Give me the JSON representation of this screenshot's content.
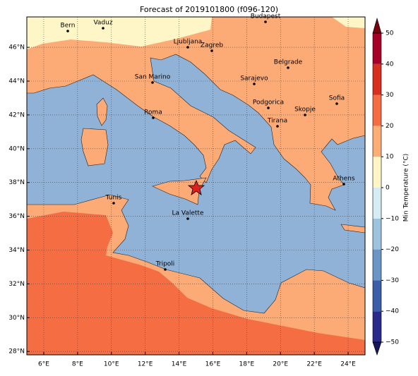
{
  "title": "Forecast of 2019101800 (f096-120)",
  "map": {
    "xlim": [
      5,
      25
    ],
    "ylim": [
      27.8,
      47.8
    ],
    "grid": true,
    "sea_color": "#90b2d6",
    "xticks": [
      {
        "value": 6,
        "label": "6°E"
      },
      {
        "value": 8,
        "label": "8°E"
      },
      {
        "value": 10,
        "label": "10°E"
      },
      {
        "value": 12,
        "label": "12°E"
      },
      {
        "value": 14,
        "label": "14°E"
      },
      {
        "value": 16,
        "label": "16°E"
      },
      {
        "value": 18,
        "label": "18°E"
      },
      {
        "value": 20,
        "label": "20°E"
      },
      {
        "value": 22,
        "label": "22°E"
      },
      {
        "value": 24,
        "label": "24°E"
      }
    ],
    "yticks": [
      {
        "value": 28,
        "label": "28°N"
      },
      {
        "value": 30,
        "label": "30°N"
      },
      {
        "value": 32,
        "label": "32°N"
      },
      {
        "value": 34,
        "label": "34°N"
      },
      {
        "value": 36,
        "label": "36°N"
      },
      {
        "value": 38,
        "label": "38°N"
      },
      {
        "value": 40,
        "label": "40°N"
      },
      {
        "value": 42,
        "label": "42°N"
      },
      {
        "value": 44,
        "label": "44°N"
      },
      {
        "value": 46,
        "label": "46°N"
      }
    ]
  },
  "cities": [
    "Bern",
    "Vaduz",
    "Budapest",
    "Ljubljana",
    "Zagreb",
    "Belgrade",
    "San Marino",
    "Sarajevo",
    "Sofia",
    "Podgorica",
    "Skopje",
    "Roma",
    "Tirana",
    "Athens",
    "Tunis",
    "La Valette",
    "Tripoli"
  ],
  "colorbar": {
    "label": "Min Temperature (°C)",
    "lim": [
      -50,
      50
    ],
    "ticks": [
      {
        "value": -50,
        "label": "−50"
      },
      {
        "value": -40,
        "label": "−40"
      },
      {
        "value": -30,
        "label": "−30"
      },
      {
        "value": -20,
        "label": "−20"
      },
      {
        "value": -10,
        "label": "−10"
      },
      0,
      10,
      20,
      30,
      40,
      50
    ],
    "colors": [
      "#2a2a8a",
      "#3b5ea8",
      "#6a95c4",
      "#9cc4de",
      "#d6ecf3",
      "#fff6c8",
      "#fdad76",
      "#f46d43",
      "#d7301f",
      "#a50026"
    ],
    "extend_colors": [
      "#16165e",
      "#7a0010"
    ]
  }
}
